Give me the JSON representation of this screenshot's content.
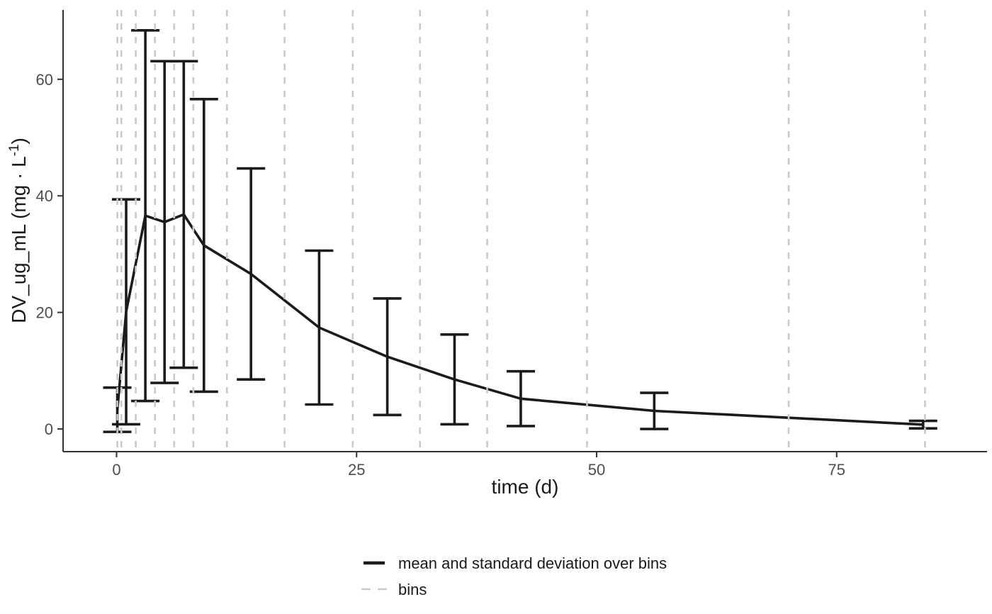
{
  "chart_data": {
    "type": "line",
    "title": "",
    "xlabel": "time (d)",
    "ylabel": "DV_ug_mL (mg · L⁻¹)",
    "ylabel_main": "DV_ug_mL (mg · L",
    "ylabel_sup": "-1",
    "ylabel_close": ")",
    "x_ticks": [
      0,
      25,
      50,
      75
    ],
    "y_ticks": [
      0,
      20,
      40,
      60
    ],
    "xlim": [
      -5.57,
      90.66
    ],
    "ylim": [
      -3.89,
      71.9
    ],
    "grid": "off",
    "series": [
      {
        "name": "mean and standard deviation over bins",
        "points": [
          {
            "t": 0.08,
            "mean": 3.3,
            "sd": 3.8
          },
          {
            "t": 1.0,
            "mean": 20.1,
            "sd": 19.3
          },
          {
            "t": 3.0,
            "mean": 36.6,
            "sd": 31.8
          },
          {
            "t": 5.0,
            "mean": 35.5,
            "sd": 27.6
          },
          {
            "t": 7.0,
            "mean": 36.8,
            "sd": 26.3
          },
          {
            "t": 9.1,
            "mean": 31.5,
            "sd": 25.1
          },
          {
            "t": 14.0,
            "mean": 26.6,
            "sd": 18.1
          },
          {
            "t": 21.1,
            "mean": 17.4,
            "sd": 13.2
          },
          {
            "t": 28.2,
            "mean": 12.4,
            "sd": 10.0
          },
          {
            "t": 35.2,
            "mean": 8.5,
            "sd": 7.7
          },
          {
            "t": 42.1,
            "mean": 5.2,
            "sd": 4.7
          },
          {
            "t": 56.0,
            "mean": 3.1,
            "sd": 3.1
          },
          {
            "t": 84.0,
            "mean": 0.75,
            "sd": 0.65
          }
        ]
      }
    ],
    "bins": [
      0.083,
      0.5,
      2,
      4,
      6,
      8,
      11.5,
      17.5,
      24.6,
      31.6,
      38.6,
      49,
      70,
      84.2
    ],
    "legend": {
      "position": "bottom",
      "entries": [
        {
          "label": "mean and standard deviation over bins",
          "line_style": "solid",
          "color": "#1b1b1b"
        },
        {
          "label": "bins",
          "line_style": "dashed",
          "color": "#c9c9c9"
        }
      ]
    },
    "colors": {
      "series_line": "#1b1b1b",
      "error_bar": "#1b1b1b",
      "bin_line": "#c9c9c9",
      "axis_line": "#333333",
      "tick_text": "#4d4d4d",
      "title_text": "#1a1a1a"
    }
  }
}
